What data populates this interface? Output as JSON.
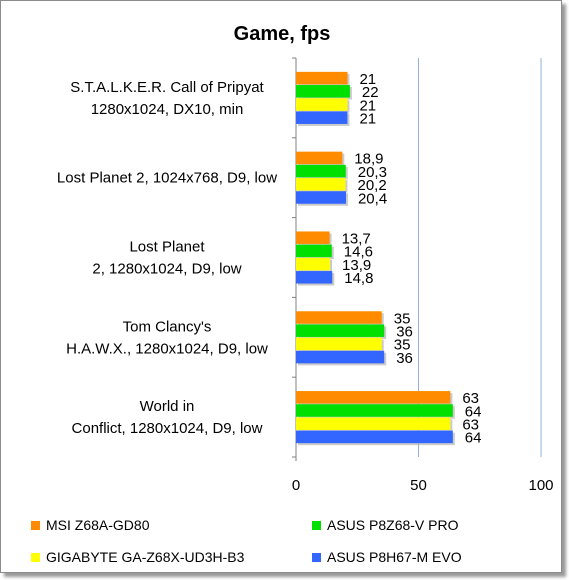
{
  "chart_data": {
    "type": "bar",
    "orientation": "horizontal",
    "title": "Game, fps",
    "categories": [
      [
        "S.T.A.L.K.E.R. Call of Pripyat",
        "1280x1024, DX10, min"
      ],
      [
        "Lost Planet 2, 1024x768, D9, low"
      ],
      [
        "Lost Planet",
        "2, 1280x1024, D9, low"
      ],
      [
        "Tom Clancy's",
        "H.A.W.X., 1280x1024, D9, low"
      ],
      [
        "World in",
        "Conflict, 1280x1024, D9, low"
      ]
    ],
    "series": [
      {
        "name": "MSI Z68A-GD80",
        "color": "#ff8c00",
        "values": [
          21,
          18.9,
          13.7,
          35,
          63
        ],
        "labels": [
          "21",
          "18,9",
          "13,7",
          "35",
          "63"
        ]
      },
      {
        "name": "ASUS P8Z68-V PRO",
        "color": "#00e000",
        "values": [
          22,
          20.3,
          14.6,
          36,
          64
        ],
        "labels": [
          "22",
          "20,3",
          "14,6",
          "36",
          "64"
        ]
      },
      {
        "name": "GIGABYTE GA-Z68X-UD3H-B3",
        "color": "#ffff00",
        "values": [
          21,
          20.2,
          13.9,
          35,
          63
        ],
        "labels": [
          "21",
          "20,2",
          "13,9",
          "35",
          "63"
        ]
      },
      {
        "name": "ASUS P8H67-M EVO",
        "color": "#3366ff",
        "values": [
          21,
          20.4,
          14.8,
          36,
          64
        ],
        "labels": [
          "21",
          "20,4",
          "14,8",
          "36",
          "64"
        ]
      }
    ],
    "xlim": [
      0,
      100
    ],
    "xticks": [
      0,
      50,
      100
    ],
    "grid": true,
    "legend_position": "bottom"
  }
}
